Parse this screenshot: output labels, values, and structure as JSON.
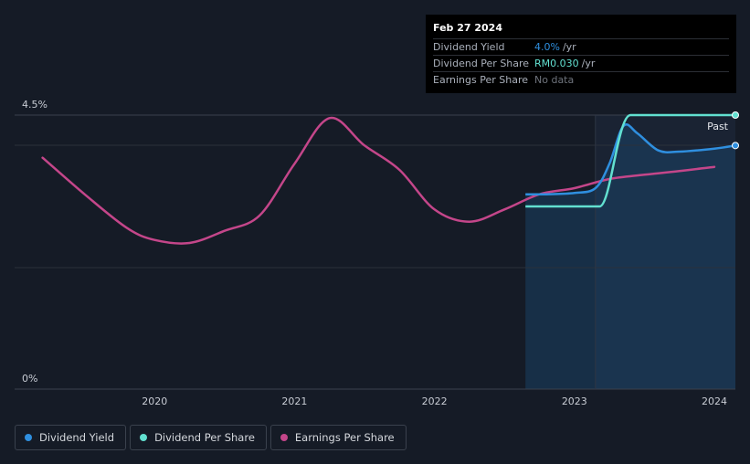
{
  "tooltip": {
    "date": "Feb 27 2024",
    "rows": {
      "yield": {
        "label": "Dividend Yield",
        "value": "4.0%",
        "unit": "/yr"
      },
      "dps": {
        "label": "Dividend Per Share",
        "value": "RM0.030",
        "unit": "/yr"
      },
      "eps": {
        "label": "Earnings Per Share",
        "value": "No data"
      }
    }
  },
  "legend": {
    "yield": "Dividend Yield",
    "dps": "Dividend Per Share",
    "eps": "Earnings Per Share"
  },
  "colors": {
    "yield": "#2f8fdf",
    "dps": "#62e0d0",
    "eps": "#c4468a",
    "background": "#151b26"
  },
  "chart_data": {
    "type": "line",
    "y_axis_label_top": "4.5%",
    "y_axis_label_bottom": "0%",
    "ylim": [
      0,
      4.5
    ],
    "xlim": [
      2019.1,
      2024.15
    ],
    "x_ticks": [
      2020,
      2021,
      2022,
      2023,
      2024
    ],
    "x_tick_labels": [
      "2020",
      "2021",
      "2022",
      "2023",
      "2024"
    ],
    "past_label": "Past",
    "past_start": 2023.15,
    "series": [
      {
        "name": "Earnings Per Share",
        "key": "eps",
        "axis": "relative",
        "x": [
          2019.2,
          2019.5,
          2019.8,
          2020.0,
          2020.25,
          2020.5,
          2020.75,
          2021.0,
          2021.25,
          2021.5,
          2021.75,
          2022.0,
          2022.25,
          2022.5,
          2022.75,
          2023.0,
          2023.25,
          2023.5,
          2023.75,
          2024.0
        ],
        "values": [
          3.8,
          3.2,
          2.65,
          2.45,
          2.4,
          2.6,
          2.85,
          3.7,
          4.45,
          4.0,
          3.6,
          2.95,
          2.75,
          2.95,
          3.2,
          3.3,
          3.45,
          3.52,
          3.58,
          3.65
        ]
      },
      {
        "name": "Dividend Yield",
        "key": "yield",
        "unit": "%",
        "x": [
          2022.65,
          2022.8,
          2023.0,
          2023.15,
          2023.25,
          2023.35,
          2023.45,
          2023.6,
          2023.75,
          2024.0,
          2024.15
        ],
        "values": [
          3.2,
          3.2,
          3.22,
          3.3,
          3.7,
          4.32,
          4.2,
          3.92,
          3.9,
          3.95,
          4.0
        ]
      },
      {
        "name": "Dividend Per Share",
        "key": "dps",
        "unit": "RM",
        "x": [
          2022.65,
          2022.9,
          2023.18,
          2023.28,
          2023.4,
          2023.7,
          2024.15
        ],
        "values": [
          0.02,
          0.02,
          0.02,
          0.025,
          0.03,
          0.03,
          0.03
        ],
        "dps_range": [
          0.0,
          0.03
        ]
      }
    ]
  }
}
